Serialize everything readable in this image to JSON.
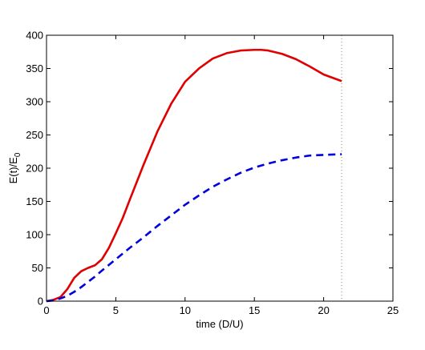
{
  "chart_data": {
    "type": "line",
    "title": "",
    "xlabel": "time (D/U)",
    "ylabel_main": "E(t)/E",
    "ylabel_sub": "0",
    "xlim": [
      0,
      25
    ],
    "ylim": [
      0,
      400
    ],
    "x_ticks": [
      0,
      5,
      10,
      15,
      20,
      25
    ],
    "y_ticks": [
      0,
      50,
      100,
      150,
      200,
      250,
      300,
      350,
      400
    ],
    "grid": false,
    "legend": "none",
    "vertical_marker": {
      "x": 21.3,
      "style": "dotted",
      "color": "#888888"
    },
    "series": [
      {
        "color": "#e00000",
        "line_style": "solid",
        "x": [
          0,
          0.5,
          1,
          1.5,
          2,
          2.5,
          3,
          3.5,
          4,
          4.5,
          5,
          5.5,
          6,
          7,
          8,
          9,
          10,
          11,
          12,
          13,
          14,
          15,
          15.5,
          16,
          17,
          18,
          19,
          20,
          21.3
        ],
        "y": [
          0,
          2,
          6,
          18,
          35,
          45,
          50,
          54,
          63,
          80,
          102,
          125,
          152,
          205,
          255,
          297,
          330,
          350,
          365,
          373,
          377,
          378,
          378,
          377,
          372,
          364,
          353,
          341,
          331
        ]
      },
      {
        "color": "#0000dd",
        "line_style": "dashed",
        "x": [
          0,
          0.5,
          1,
          1.5,
          2,
          2.5,
          3,
          3.5,
          4,
          5,
          6,
          7,
          8,
          9,
          10,
          11,
          12,
          13,
          14,
          15,
          16,
          17,
          18,
          19,
          20,
          21.3
        ],
        "y": [
          0,
          1,
          4,
          8,
          14,
          21,
          29,
          37,
          46,
          63,
          80,
          96,
          113,
          129,
          145,
          159,
          172,
          183,
          193,
          201,
          207,
          212,
          216,
          219,
          220,
          221
        ]
      }
    ]
  }
}
